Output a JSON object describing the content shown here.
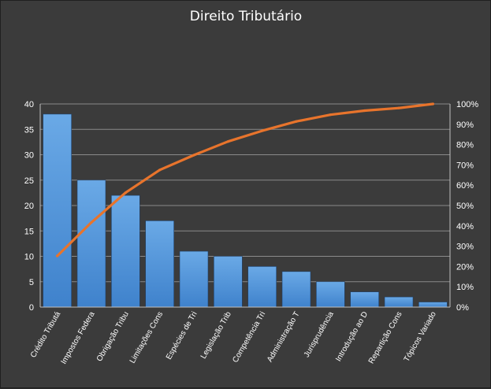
{
  "chart_data": {
    "type": "bar",
    "title": "Direito Tributário",
    "categories": [
      "Crédito Tributá",
      "Impostos Federa",
      "Obrigação Tribu",
      "Limitações Cons",
      "Espécies de Tri",
      "Legislação Trib",
      "Competência Tri",
      "Administração T",
      "Jurisprudência",
      "Introdução ao D",
      "Repartição Cons",
      "Tópicos Variado"
    ],
    "series": [
      {
        "type": "bar",
        "axis": "left",
        "values": [
          38,
          25,
          22,
          17,
          11,
          10,
          8,
          7,
          5,
          3,
          2,
          1
        ]
      },
      {
        "type": "line",
        "axis": "right",
        "values": [
          25.2,
          41.7,
          56.3,
          67.5,
          74.8,
          81.5,
          86.8,
          91.4,
          94.7,
          96.7,
          98.0,
          100
        ]
      }
    ],
    "y_left": {
      "ylim": [
        0,
        40
      ],
      "ticks": [
        0,
        5,
        10,
        15,
        20,
        25,
        30,
        35,
        40
      ]
    },
    "y_right": {
      "ylim": [
        0,
        100
      ],
      "ticks": [
        "0%",
        "10%",
        "20%",
        "30%",
        "40%",
        "50%",
        "60%",
        "70%",
        "80%",
        "90%",
        "100%"
      ]
    },
    "grid": true,
    "colors": {
      "bar": "#4a8fd6",
      "bar_light": "#6aa9e6",
      "line": "#e8742c",
      "background": "#3b3b3b",
      "grid": "#8a8a8a"
    }
  }
}
